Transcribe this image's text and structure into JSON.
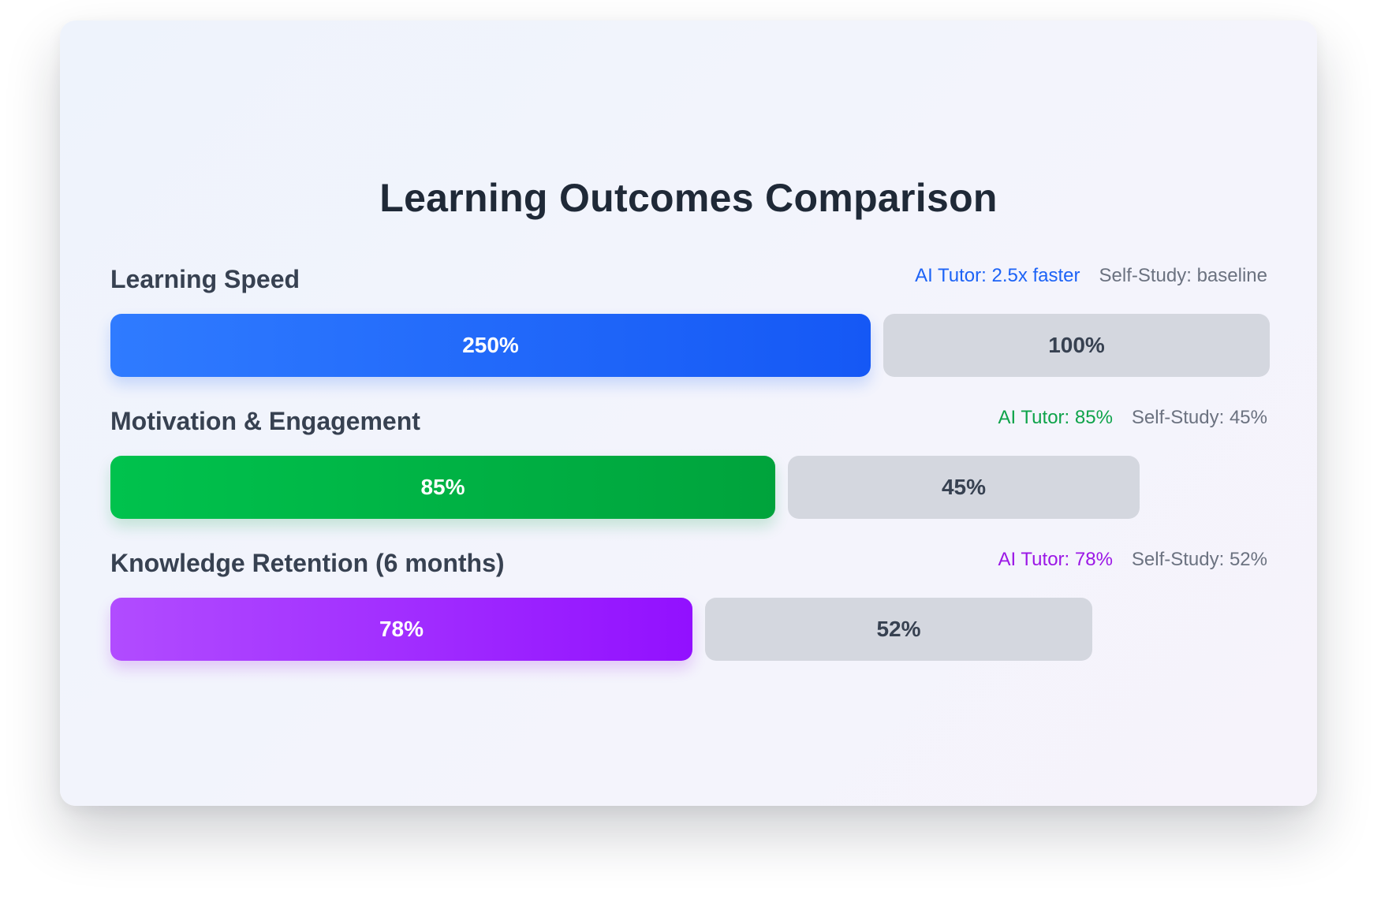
{
  "chart_data": {
    "type": "bar",
    "title": "Learning Outcomes Comparison",
    "orientation": "horizontal",
    "series": [
      {
        "name": "AI Tutor",
        "values": [
          250,
          85,
          78
        ]
      },
      {
        "name": "Self-Study",
        "values": [
          100,
          45,
          52
        ]
      }
    ],
    "categories": [
      "Learning Speed",
      "Motivation & Engagement",
      "Knowledge Retention (6 months)"
    ],
    "metrics": [
      {
        "label": "Learning Speed",
        "ai_value": 250,
        "self_value": 100,
        "ai_text": "250%",
        "self_text": "100%",
        "ai_legend": "AI Tutor: 2.5x faster",
        "self_legend": "Self-Study: baseline",
        "color": "#1d63f6",
        "gradient": [
          "#2f7bff",
          "#1558f5"
        ]
      },
      {
        "label": "Motivation & Engagement",
        "ai_value": 85,
        "self_value": 45,
        "ai_text": "85%",
        "self_text": "45%",
        "ai_legend": "AI Tutor: 85%",
        "self_legend": "Self-Study: 45%",
        "color": "#0ea34a",
        "gradient": [
          "#00c24d",
          "#00a33c"
        ]
      },
      {
        "label": "Knowledge Retention (6 months)",
        "ai_value": 78,
        "self_value": 52,
        "ai_text": "78%",
        "self_text": "52%",
        "ai_legend": "AI Tutor: 78%",
        "self_legend": "Self-Study: 52%",
        "color": "#9b17e6",
        "gradient": [
          "#b14cff",
          "#9210ff"
        ]
      }
    ]
  }
}
